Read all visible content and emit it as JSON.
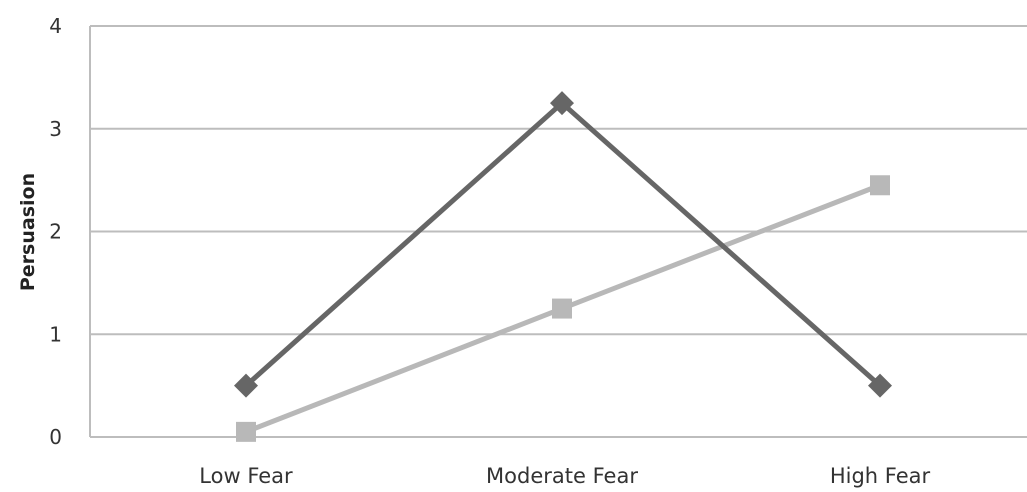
{
  "chart_data": {
    "type": "line",
    "categories": [
      "Low Fear",
      "Moderate Fear",
      "High Fear"
    ],
    "series": [
      {
        "values": [
          0.5,
          3.25,
          0.5
        ],
        "color": "#666666",
        "marker": "diamond"
      },
      {
        "values": [
          0.05,
          1.25,
          2.45
        ],
        "color": "#b8b8b8",
        "marker": "square"
      }
    ],
    "ylim": [
      0,
      4
    ],
    "yticks": [
      "0",
      "1",
      "2",
      "3",
      "4"
    ],
    "ylabel": "Persuasion",
    "xlabel": "",
    "grid": true,
    "legend": "none"
  }
}
